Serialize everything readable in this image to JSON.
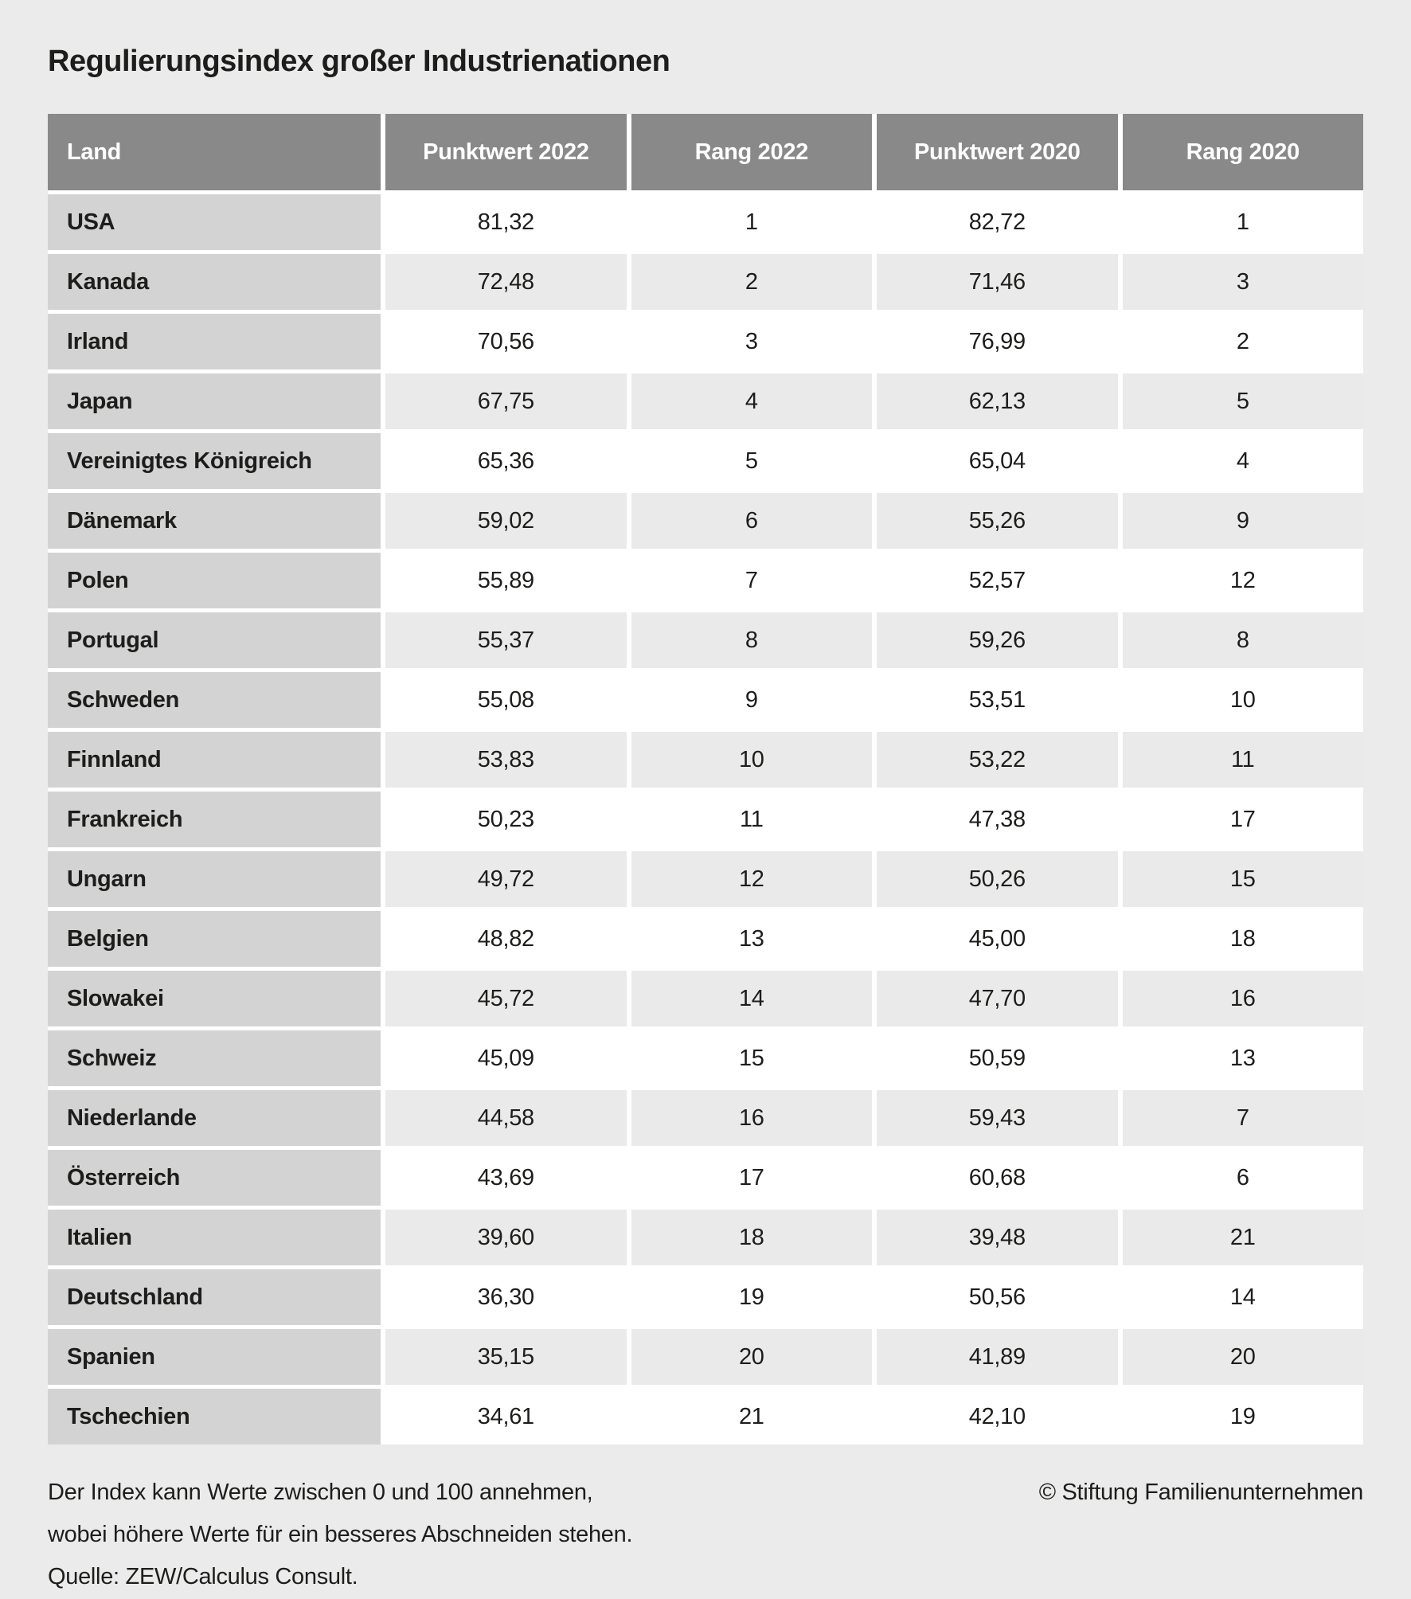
{
  "title": "Regulierungsindex großer Industrienationen",
  "chart_data": {
    "type": "table",
    "columns": [
      "Land",
      "Punktwert 2022",
      "Rang 2022",
      "Punktwert 2020",
      "Rang 2020"
    ],
    "rows": [
      [
        "USA",
        "81,32",
        "1",
        "82,72",
        "1"
      ],
      [
        "Kanada",
        "72,48",
        "2",
        "71,46",
        "3"
      ],
      [
        "Irland",
        "70,56",
        "3",
        "76,99",
        "2"
      ],
      [
        "Japan",
        "67,75",
        "4",
        "62,13",
        "5"
      ],
      [
        "Vereinigtes Königreich",
        "65,36",
        "5",
        "65,04",
        "4"
      ],
      [
        "Dänemark",
        "59,02",
        "6",
        "55,26",
        "9"
      ],
      [
        "Polen",
        "55,89",
        "7",
        "52,57",
        "12"
      ],
      [
        "Portugal",
        "55,37",
        "8",
        "59,26",
        "8"
      ],
      [
        "Schweden",
        "55,08",
        "9",
        "53,51",
        "10"
      ],
      [
        "Finnland",
        "53,83",
        "10",
        "53,22",
        "11"
      ],
      [
        "Frankreich",
        "50,23",
        "11",
        "47,38",
        "17"
      ],
      [
        "Ungarn",
        "49,72",
        "12",
        "50,26",
        "15"
      ],
      [
        "Belgien",
        "48,82",
        "13",
        "45,00",
        "18"
      ],
      [
        "Slowakei",
        "45,72",
        "14",
        "47,70",
        "16"
      ],
      [
        "Schweiz",
        "45,09",
        "15",
        "50,59",
        "13"
      ],
      [
        "Niederlande",
        "44,58",
        "16",
        "59,43",
        "7"
      ],
      [
        "Österreich",
        "43,69",
        "17",
        "60,68",
        "6"
      ],
      [
        "Italien",
        "39,60",
        "18",
        "39,48",
        "21"
      ],
      [
        "Deutschland",
        "36,30",
        "19",
        "50,56",
        "14"
      ],
      [
        "Spanien",
        "35,15",
        "20",
        "41,89",
        "20"
      ],
      [
        "Tschechien",
        "34,61",
        "21",
        "42,10",
        "19"
      ]
    ],
    "value_range_note": "Index 0-100",
    "grid": "white gap lines, no outer border",
    "legend_position": "none"
  },
  "footer": {
    "note_lines": [
      "Der Index kann Werte zwischen 0 und 100 annehmen,",
      "wobei höhere Werte für ein besseres Abschneiden stehen.",
      "Quelle: ZEW/Calculus Consult."
    ],
    "copyright": "© Stiftung Familienunternehmen"
  },
  "colors": {
    "page_bg": "#ebebeb",
    "header_bg": "#898989",
    "header_text": "#ffffff",
    "country_col_bg": "#d3d3d3",
    "row_bg": "#ffffff",
    "row_alt_bg": "#eaeaea",
    "text": "#1d1d1b"
  }
}
